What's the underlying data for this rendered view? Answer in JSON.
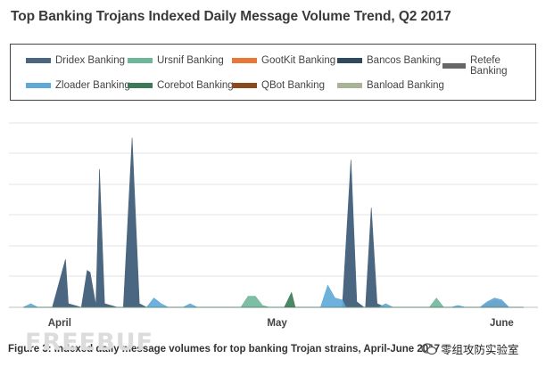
{
  "chart_data": {
    "type": "area",
    "title": "Top Banking Trojans Indexed Daily Message Volume Trend, Q2 2017",
    "xlabel": "",
    "ylabel": "",
    "ylim": [
      0,
      100
    ],
    "grid": true,
    "legend_position": "top",
    "x_ticks": [
      {
        "label": "April",
        "day": 3
      },
      {
        "label": "May",
        "day": 33
      },
      {
        "label": "June",
        "day": 64
      }
    ],
    "x_range": [
      -4,
      69
    ],
    "series": [
      {
        "name": "Dridex Banking",
        "color": "#4a6680",
        "points": [
          [
            -2,
            0
          ],
          [
            2,
            0
          ],
          [
            3.8,
            26
          ],
          [
            4.2,
            2
          ],
          [
            6,
            0
          ],
          [
            6.8,
            20
          ],
          [
            7.2,
            19
          ],
          [
            8,
            1
          ],
          [
            8.5,
            75
          ],
          [
            9.2,
            2
          ],
          [
            11,
            0
          ],
          [
            11.8,
            0
          ],
          [
            13,
            92
          ],
          [
            14,
            2
          ],
          [
            15,
            0
          ],
          [
            42,
            0
          ],
          [
            43.2,
            80
          ],
          [
            44,
            3
          ],
          [
            45,
            0
          ],
          [
            45.2,
            0
          ],
          [
            46,
            54
          ],
          [
            46.8,
            2
          ],
          [
            48,
            0
          ],
          [
            67,
            0
          ]
        ]
      },
      {
        "name": "Ursnif Banking",
        "color": "#6fb79a",
        "points": [
          [
            -2,
            0
          ],
          [
            28,
            0
          ],
          [
            29,
            6
          ],
          [
            30,
            6
          ],
          [
            31,
            1
          ],
          [
            32,
            0
          ],
          [
            54,
            0
          ],
          [
            55,
            5
          ],
          [
            56,
            0
          ],
          [
            67,
            0
          ]
        ]
      },
      {
        "name": "GootKit Banking",
        "color": "#e8773a",
        "points": [
          [
            -2,
            0
          ],
          [
            61,
            0
          ],
          [
            62,
            2
          ],
          [
            63,
            4
          ],
          [
            64,
            3
          ],
          [
            65,
            0
          ],
          [
            67,
            0
          ]
        ]
      },
      {
        "name": "Bancos Banking",
        "color": "#2e4a5e",
        "points": [
          [
            -2,
            0
          ],
          [
            67,
            0
          ]
        ]
      },
      {
        "name": "Retefe Banking",
        "color": "#666666",
        "points": [
          [
            -2,
            0
          ],
          [
            67,
            0
          ]
        ]
      },
      {
        "name": "Zloader Banking",
        "color": "#5ea9d8",
        "points": [
          [
            -2,
            0
          ],
          [
            -1,
            2
          ],
          [
            0,
            0
          ],
          [
            15,
            0
          ],
          [
            16,
            5
          ],
          [
            17,
            2
          ],
          [
            18,
            0
          ],
          [
            20,
            0
          ],
          [
            21,
            2
          ],
          [
            22,
            0
          ],
          [
            39,
            0
          ],
          [
            40,
            12
          ],
          [
            41,
            5
          ],
          [
            42,
            4
          ],
          [
            42.5,
            0
          ],
          [
            47,
            0
          ],
          [
            48,
            2
          ],
          [
            49,
            0
          ],
          [
            57,
            0
          ],
          [
            58,
            1
          ],
          [
            59,
            0
          ],
          [
            61,
            0
          ],
          [
            62,
            3
          ],
          [
            63,
            5
          ],
          [
            64,
            4
          ],
          [
            65,
            0
          ],
          [
            67,
            0
          ]
        ]
      },
      {
        "name": "Corebot Banking",
        "color": "#3a7a58",
        "points": [
          [
            -2,
            0
          ],
          [
            34,
            0
          ],
          [
            35,
            8
          ],
          [
            35.5,
            0
          ],
          [
            67,
            0
          ]
        ]
      },
      {
        "name": "QBot Banking",
        "color": "#8a4a20",
        "points": [
          [
            -2,
            0
          ],
          [
            67,
            0
          ]
        ]
      },
      {
        "name": "Banload Banking",
        "color": "#a7b495",
        "points": [
          [
            -2,
            0
          ],
          [
            67,
            0
          ]
        ]
      }
    ]
  },
  "caption": "Figure 3: Indexed daily message volumes for top banking Trojan strains, April-June 2017",
  "watermark": {
    "left_text": "FREEBUF",
    "right_text": "零组攻防实验室"
  }
}
